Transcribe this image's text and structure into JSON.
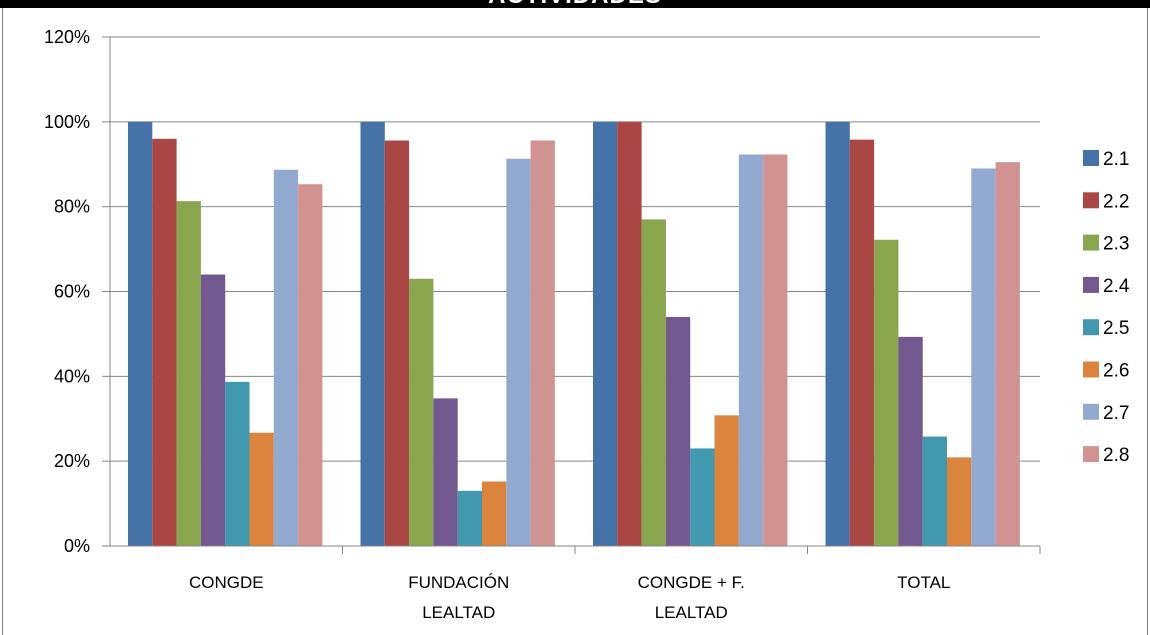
{
  "chart_data": {
    "type": "bar",
    "title": "ACTIVIDADES",
    "categories": [
      [
        "CONGDE"
      ],
      [
        "FUNDACIÓN",
        "LEALTAD"
      ],
      [
        "CONGDE + F.",
        "LEALTAD"
      ],
      [
        "TOTAL"
      ]
    ],
    "y_ticks": [
      "0%",
      "20%",
      "40%",
      "60%",
      "80%",
      "100%",
      "120%"
    ],
    "ylim": [
      0,
      120
    ],
    "y_unit": "%",
    "grid": true,
    "legend_position": "right",
    "series": [
      {
        "name": "2.1",
        "color": "#4572a7",
        "values": [
          100,
          100,
          100,
          100
        ]
      },
      {
        "name": "2.2",
        "color": "#aa4643",
        "values": [
          96,
          95.6,
          100,
          95.8
        ]
      },
      {
        "name": "2.3",
        "color": "#89a54e",
        "values": [
          81.3,
          63,
          77,
          72.2
        ]
      },
      {
        "name": "2.4",
        "color": "#71588f",
        "values": [
          64,
          34.8,
          54,
          49.3
        ]
      },
      {
        "name": "2.5",
        "color": "#4198af",
        "values": [
          38.7,
          13,
          23,
          25.8
        ]
      },
      {
        "name": "2.6",
        "color": "#db843d",
        "values": [
          26.7,
          15.2,
          30.8,
          20.9
        ]
      },
      {
        "name": "2.7",
        "color": "#93a9cf",
        "values": [
          88.7,
          91.3,
          92.3,
          89
        ]
      },
      {
        "name": "2.8",
        "color": "#d19392",
        "values": [
          85.3,
          95.6,
          92.3,
          90.5
        ]
      }
    ]
  }
}
